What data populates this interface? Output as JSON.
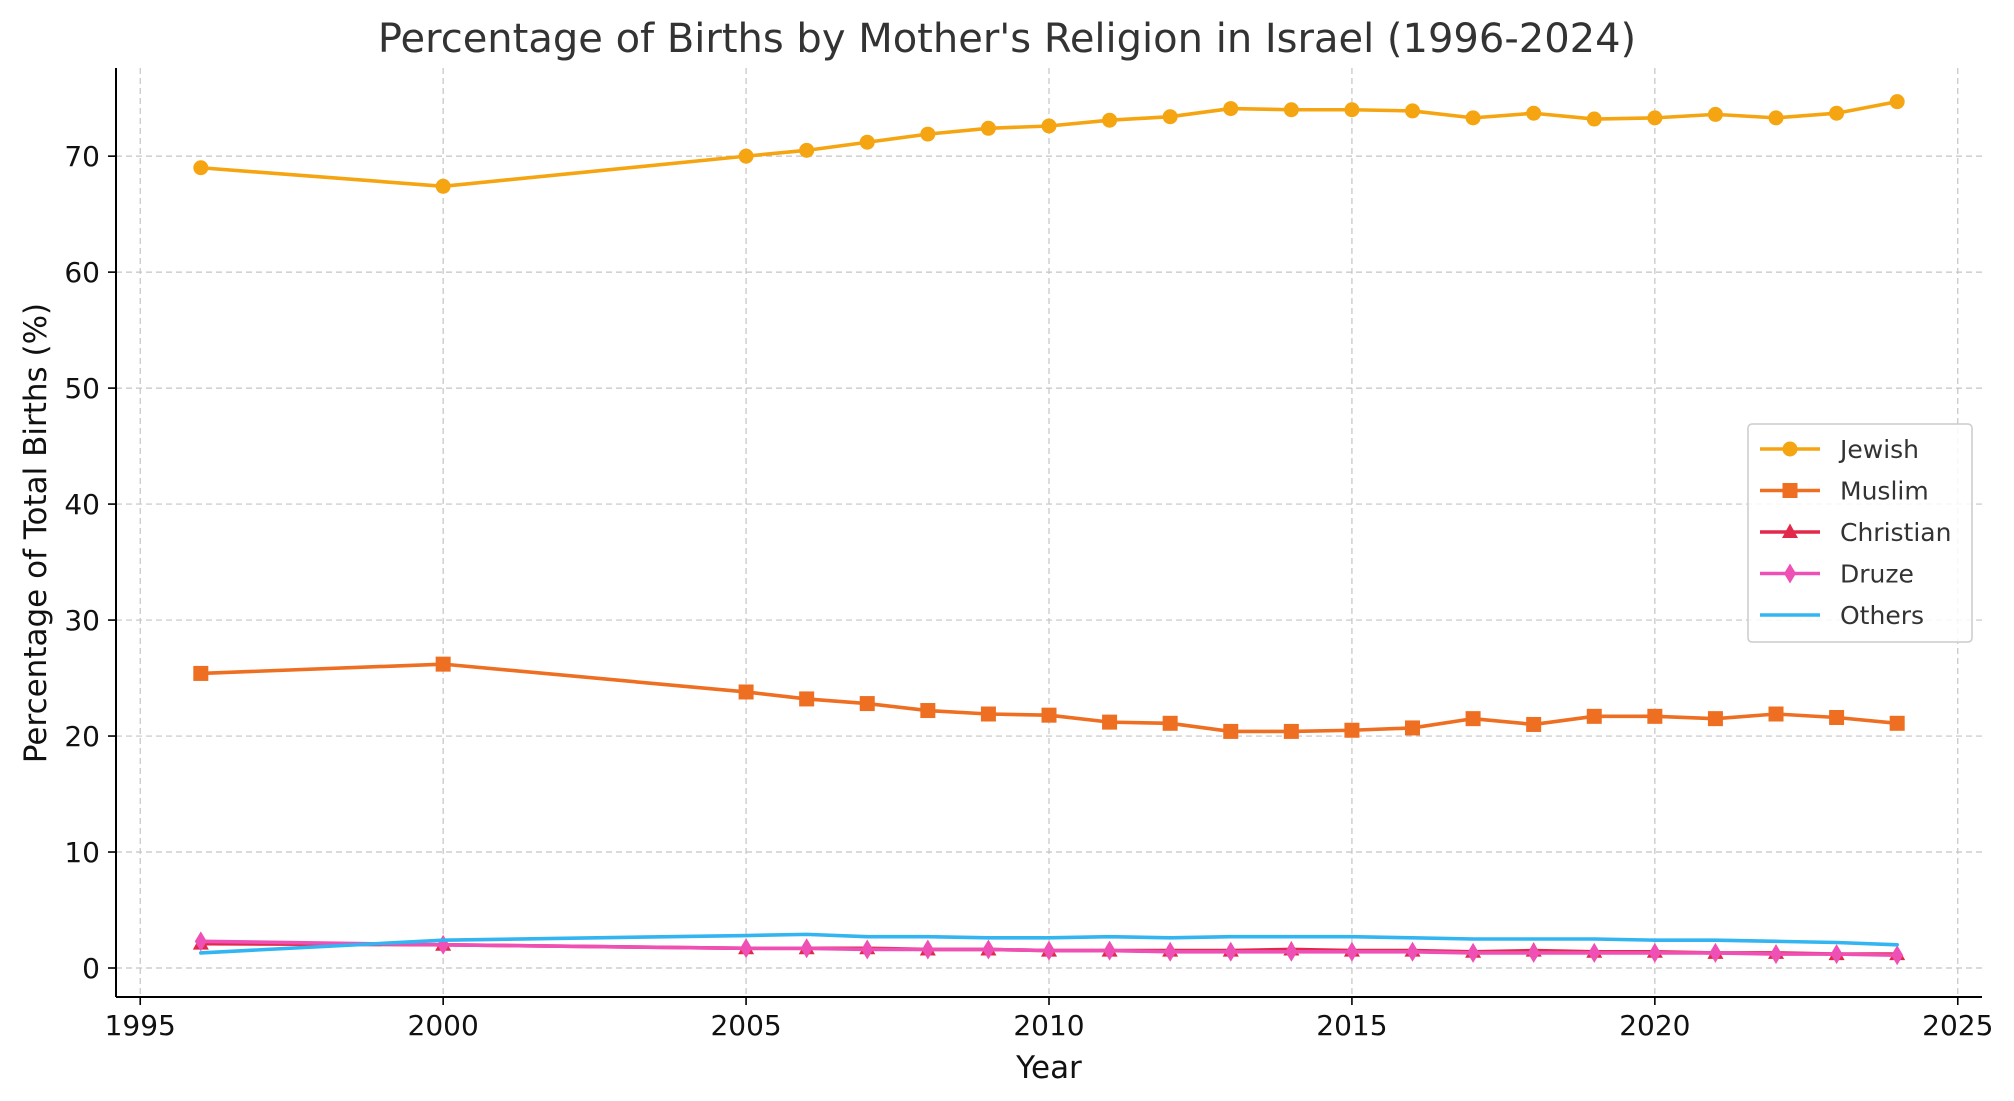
{
  "chart_data": {
    "type": "line",
    "title": "Percentage of Births by Mother's Religion in Israel (1996-2024)",
    "xlabel": "Year",
    "ylabel": "Percentage of Total Births (%)",
    "xlim": [
      1994.6,
      2025.4
    ],
    "ylim": [
      -2.5,
      77.6
    ],
    "xticks": [
      1995,
      2000,
      2005,
      2010,
      2015,
      2020,
      2025
    ],
    "yticks": [
      0,
      10,
      20,
      30,
      40,
      50,
      60,
      70
    ],
    "grid": true,
    "legend_position": "center-right",
    "x": [
      1996,
      2000,
      2005,
      2006,
      2007,
      2008,
      2009,
      2010,
      2011,
      2012,
      2013,
      2014,
      2015,
      2016,
      2017,
      2018,
      2019,
      2020,
      2021,
      2022,
      2023,
      2024
    ],
    "series": [
      {
        "name": "Jewish",
        "color": "#F5A511",
        "marker": "circle",
        "values": [
          69.0,
          67.4,
          70.0,
          70.5,
          71.2,
          71.9,
          72.4,
          72.6,
          73.1,
          73.4,
          74.1,
          74.0,
          74.0,
          73.9,
          73.3,
          73.7,
          73.2,
          73.3,
          73.6,
          73.3,
          73.7,
          74.7
        ]
      },
      {
        "name": "Muslim",
        "color": "#EE6E22",
        "marker": "square",
        "values": [
          25.4,
          26.2,
          23.8,
          23.2,
          22.8,
          22.2,
          21.9,
          21.8,
          21.2,
          21.1,
          20.4,
          20.4,
          20.5,
          20.7,
          21.5,
          21.0,
          21.7,
          21.7,
          21.5,
          21.9,
          21.6,
          21.1
        ]
      },
      {
        "name": "Christian",
        "color": "#E3294B",
        "marker": "triangle",
        "values": [
          2.1,
          2.0,
          1.7,
          1.7,
          1.7,
          1.6,
          1.6,
          1.5,
          1.5,
          1.5,
          1.5,
          1.6,
          1.5,
          1.5,
          1.4,
          1.5,
          1.4,
          1.4,
          1.3,
          1.3,
          1.2,
          1.2
        ]
      },
      {
        "name": "Druze",
        "color": "#EE50B6",
        "marker": "thin_diamond",
        "values": [
          2.3,
          2.0,
          1.7,
          1.7,
          1.6,
          1.6,
          1.6,
          1.5,
          1.5,
          1.4,
          1.4,
          1.4,
          1.4,
          1.4,
          1.3,
          1.3,
          1.3,
          1.3,
          1.3,
          1.2,
          1.2,
          1.1
        ]
      },
      {
        "name": "Others",
        "color": "#33B5F2",
        "marker": "none",
        "values": [
          1.3,
          2.4,
          2.8,
          2.9,
          2.7,
          2.7,
          2.6,
          2.6,
          2.7,
          2.6,
          2.7,
          2.7,
          2.7,
          2.6,
          2.5,
          2.5,
          2.5,
          2.4,
          2.4,
          2.3,
          2.2,
          2.0
        ]
      }
    ]
  }
}
